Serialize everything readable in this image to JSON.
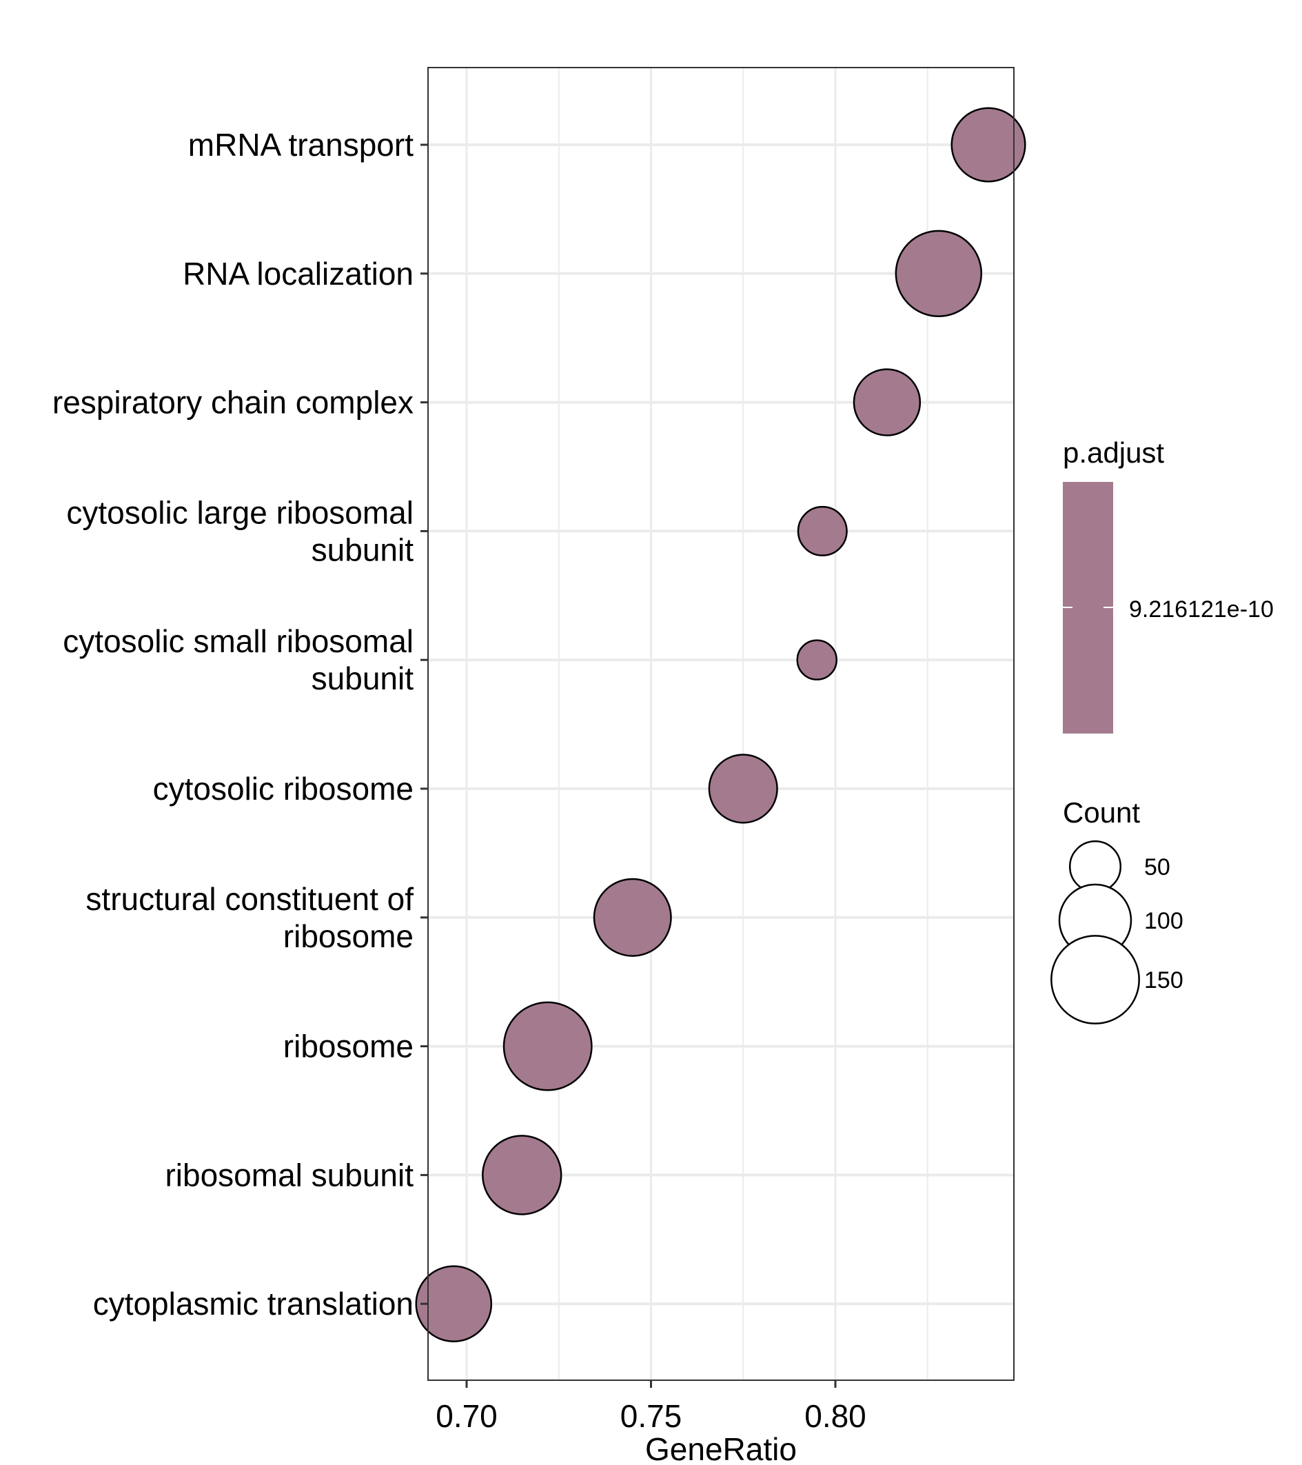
{
  "chart_data": {
    "type": "scatter",
    "xlabel": "GeneRatio",
    "ylabel": "",
    "xlim": [
      0.69,
      0.849
    ],
    "x_ticks": [
      {
        "value": 0.7,
        "label": "0.70"
      },
      {
        "value": 0.75,
        "label": "0.75"
      },
      {
        "value": 0.8,
        "label": "0.80"
      }
    ],
    "x_minor_gridlines": [
      0.725,
      0.775,
      0.825
    ],
    "grid": true,
    "point_color": "#a47a8f",
    "point_stroke": "#000000",
    "categories": [
      {
        "label": [
          "mRNA transport"
        ],
        "x": 0.8415,
        "count": 105
      },
      {
        "label": [
          "RNA localization"
        ],
        "x": 0.828,
        "count": 142
      },
      {
        "label": [
          "respiratory chain complex"
        ],
        "x": 0.814,
        "count": 85
      },
      {
        "label": [
          "cytosolic large ribosomal",
          "subunit"
        ],
        "x": 0.7965,
        "count": 46
      },
      {
        "label": [
          "cytosolic small ribosomal",
          "subunit"
        ],
        "x": 0.795,
        "count": 30
      },
      {
        "label": [
          "cytosolic ribosome"
        ],
        "x": 0.775,
        "count": 90
      },
      {
        "label": [
          "structural constituent of",
          "ribosome"
        ],
        "x": 0.745,
        "count": 115
      },
      {
        "label": [
          "ribosome"
        ],
        "x": 0.722,
        "count": 150
      },
      {
        "label": [
          "ribosomal subunit"
        ],
        "x": 0.715,
        "count": 120
      },
      {
        "label": [
          "cytoplasmic translation"
        ],
        "x": 0.6965,
        "count": 110
      }
    ],
    "legend": {
      "placement": "right",
      "color_title": "p.adjust",
      "color_label": "9.216121e-10",
      "size_title": "Count",
      "size_entries": [
        {
          "label": "50",
          "count": 50
        },
        {
          "label": "100",
          "count": 100
        },
        {
          "label": "150",
          "count": 150
        }
      ]
    }
  }
}
